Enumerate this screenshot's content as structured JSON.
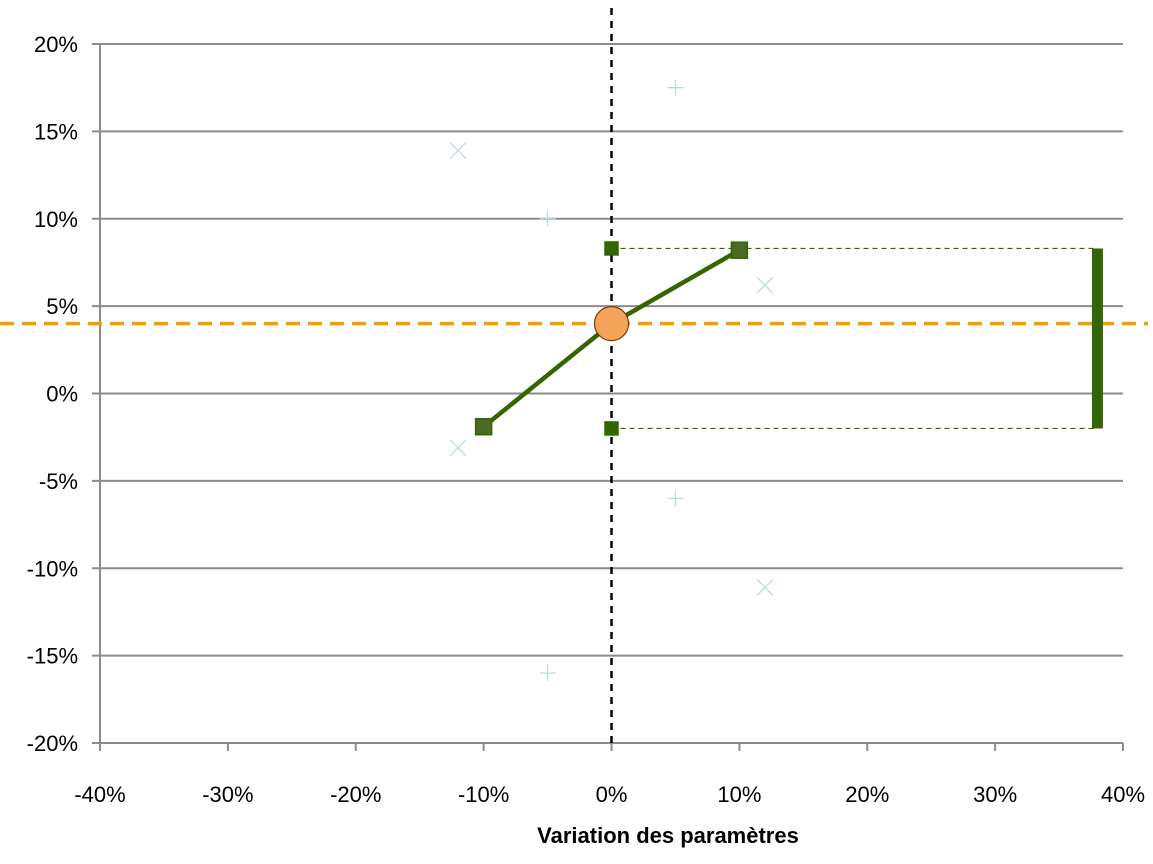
{
  "chart_data": {
    "type": "scatter",
    "title": "",
    "xlabel": "Variation des paramètres",
    "ylabel": "",
    "xlim": [
      -0.4,
      0.4
    ],
    "ylim": [
      -0.2,
      0.2
    ],
    "grid": "horizontal",
    "x_ticks": [
      -0.4,
      -0.3,
      -0.2,
      -0.1,
      0.0,
      0.1,
      0.2,
      0.3,
      0.4
    ],
    "x_tick_labels": [
      "-40%",
      "-30%",
      "-20%",
      "-10%",
      "0%",
      "10%",
      "20%",
      "30%",
      "40%"
    ],
    "y_ticks": [
      0.2,
      0.15,
      0.1,
      0.05,
      0.0,
      -0.05,
      -0.1,
      -0.15,
      -0.2
    ],
    "y_tick_labels": [
      "20%",
      "15%",
      "10%",
      "5%",
      "0%",
      "-5%",
      "-10%",
      "-15%",
      "-20%"
    ],
    "base_value": 0.04,
    "base_value_color": "#f59e00",
    "base_point_color": "#f7a25a",
    "vertical_reference_x": 0.0,
    "series": [
      {
        "marker": "square",
        "color": "#336600",
        "line": true,
        "x": [
          -0.1,
          0.0,
          0.1
        ],
        "y": [
          -0.019,
          0.04,
          0.082
        ]
      },
      {
        "marker": "square",
        "color": "#336600",
        "line": false,
        "x": [
          0.0,
          0.0
        ],
        "y": [
          0.083,
          -0.02
        ]
      },
      {
        "marker": "plus",
        "color": "#b0dde8",
        "line": false,
        "x": [
          0.05,
          -0.05,
          -0.05,
          0.05
        ],
        "y": [
          0.175,
          0.1,
          -0.16,
          -0.06
        ]
      },
      {
        "marker": "cross",
        "color": "#b9dbe6",
        "line": false,
        "x": [
          -0.12,
          -0.12,
          0.12,
          0.12
        ],
        "y": [
          0.139,
          -0.031,
          0.062,
          -0.111
        ]
      }
    ],
    "range_bar": {
      "x": 0.38,
      "y_min": -0.02,
      "y_max": 0.083,
      "color": "#336600"
    }
  }
}
